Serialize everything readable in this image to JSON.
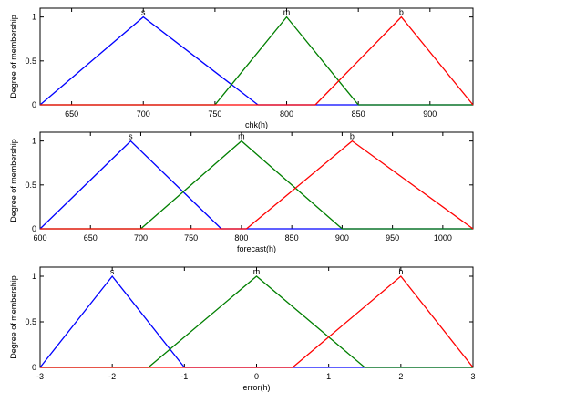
{
  "chart_data": [
    {
      "type": "line",
      "xlabel": "chk(h)",
      "ylabel": "Degree of membership",
      "xlim": [
        628,
        930
      ],
      "ylim": [
        0,
        1.1
      ],
      "xticks": [
        650,
        700,
        750,
        800,
        850,
        900
      ],
      "yticks": [
        0,
        0.5,
        1
      ],
      "grid": false,
      "series": [
        {
          "name": "s",
          "color": "#0000ff",
          "x": [
            628,
            700,
            780
          ],
          "y": [
            0,
            1,
            0
          ]
        },
        {
          "name": "m",
          "color": "#007f00",
          "x": [
            750,
            800,
            850
          ],
          "y": [
            0,
            1,
            0
          ]
        },
        {
          "name": "b",
          "color": "#ff0000",
          "x": [
            820,
            880,
            930
          ],
          "y": [
            0,
            1,
            0
          ]
        }
      ]
    },
    {
      "type": "line",
      "xlabel": "forecast(h)",
      "ylabel": "Degree of membership",
      "xlim": [
        600,
        1030
      ],
      "ylim": [
        0,
        1.1
      ],
      "xticks": [
        600,
        650,
        700,
        750,
        800,
        850,
        900,
        950,
        1000
      ],
      "yticks": [
        0,
        0.5,
        1
      ],
      "grid": false,
      "series": [
        {
          "name": "s",
          "color": "#0000ff",
          "x": [
            600,
            690,
            780
          ],
          "y": [
            0,
            1,
            0
          ]
        },
        {
          "name": "m",
          "color": "#007f00",
          "x": [
            700,
            800,
            900
          ],
          "y": [
            0,
            1,
            0
          ]
        },
        {
          "name": "b",
          "color": "#ff0000",
          "x": [
            805,
            910,
            1030
          ],
          "y": [
            0,
            1,
            0
          ]
        }
      ]
    },
    {
      "type": "line",
      "xlabel": "error(h)",
      "ylabel": "Degree of membership",
      "xlim": [
        -3,
        3
      ],
      "ylim": [
        0,
        1.1
      ],
      "xticks": [
        -3,
        -2,
        -1,
        0,
        1,
        2,
        3
      ],
      "yticks": [
        0,
        0.5,
        1
      ],
      "grid": false,
      "series": [
        {
          "name": "s",
          "color": "#0000ff",
          "x": [
            -3,
            -2,
            -1
          ],
          "y": [
            0,
            1,
            0
          ]
        },
        {
          "name": "m",
          "color": "#007f00",
          "x": [
            -1.5,
            0,
            1.5
          ],
          "y": [
            0,
            1,
            0
          ]
        },
        {
          "name": "b",
          "color": "#ff0000",
          "x": [
            0.5,
            2,
            3
          ],
          "y": [
            0,
            1,
            0
          ]
        }
      ]
    }
  ]
}
